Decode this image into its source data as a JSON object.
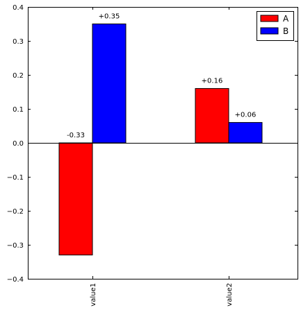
{
  "chart_data": {
    "type": "bar",
    "categories": [
      "value1",
      "value2"
    ],
    "series": [
      {
        "name": "A",
        "color": "#ff0000",
        "values": [
          -0.33,
          0.16
        ]
      },
      {
        "name": "B",
        "color": "#0000ff",
        "values": [
          0.35,
          0.06
        ]
      }
    ],
    "data_labels": [
      [
        "-0.33",
        "+0.16"
      ],
      [
        "+0.35",
        "+0.06"
      ]
    ],
    "yticks": [
      -0.4,
      -0.3,
      -0.2,
      -0.1,
      0.0,
      0.1,
      0.2,
      0.3,
      0.4
    ],
    "ytick_labels": [
      "−0.4",
      "−0.3",
      "−0.2",
      "−0.1",
      "0.0",
      "0.1",
      "0.2",
      "0.3",
      "0.4"
    ],
    "ylim": [
      -0.4,
      0.4
    ],
    "title": "",
    "xlabel": "",
    "ylabel": "",
    "legend": "top-right",
    "grid": false,
    "xtick_rotation": "vertical"
  }
}
